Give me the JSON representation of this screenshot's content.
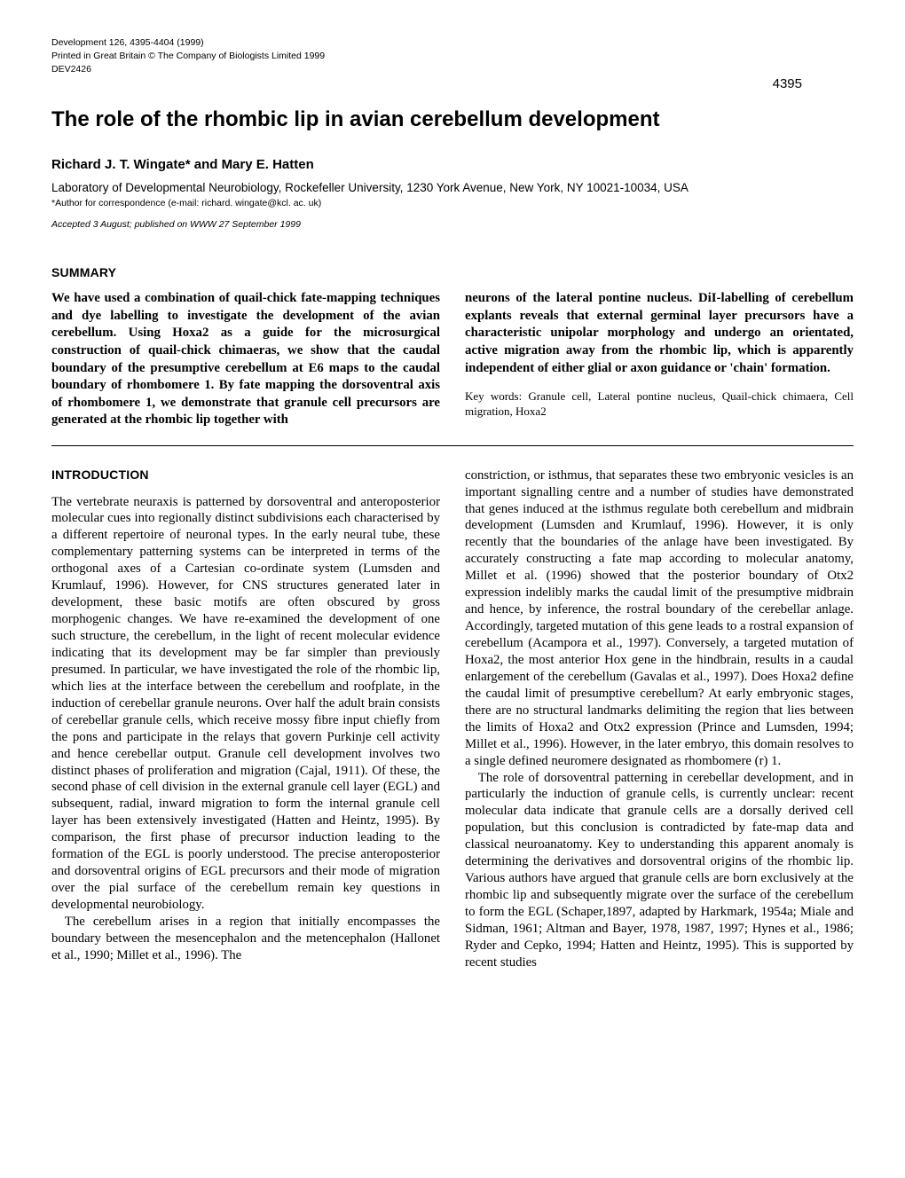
{
  "meta": {
    "journal_line1": "Development 126, 4395-4404 (1999)",
    "journal_line2": "Printed in Great Britain © The Company of Biologists Limited 1999",
    "journal_line3": "DEV2426",
    "page_number": "4395"
  },
  "title": "The role of the rhombic lip in avian cerebellum development",
  "authors": "Richard J. T. Wingate* and Mary E. Hatten",
  "affiliation": "Laboratory of Developmental Neurobiology, Rockefeller University, 1230 York Avenue, New York, NY 10021-10034, USA",
  "correspondence": "*Author for correspondence (e-mail: richard. wingate@kcl. ac. uk)",
  "accepted": "Accepted 3 August; published on WWW 27 September 1999",
  "summary": {
    "heading": "SUMMARY",
    "left": "We have used a combination of quail-chick fate-mapping techniques and dye labelling to investigate the development of the avian cerebellum. Using Hoxa2 as a guide for the microsurgical construction of quail-chick chimaeras, we show that the caudal boundary of the presumptive cerebellum at E6 maps to the caudal boundary of rhombomere 1. By fate mapping the dorsoventral axis of rhombomere 1, we demonstrate that granule cell precursors are generated at the rhombic lip together with",
    "right_bold": "neurons of the lateral pontine nucleus. DiI-labelling of cerebellum explants reveals that external germinal layer precursors have a characteristic unipolar morphology and undergo an orientated, active migration away from the rhombic lip, which is apparently independent of either glial or axon guidance or 'chain' formation.",
    "keywords": "Key words: Granule cell, Lateral pontine nucleus, Quail-chick chimaera, Cell migration, Hoxa2"
  },
  "intro": {
    "heading": "INTRODUCTION",
    "left_p1": "The vertebrate neuraxis is patterned by dorsoventral and anteroposterior molecular cues into regionally distinct subdivisions each characterised by a different repertoire of neuronal types. In the early neural tube, these complementary patterning systems can be interpreted in terms of the orthogonal axes of a Cartesian co-ordinate system (Lumsden and Krumlauf, 1996). However, for CNS structures generated later in development, these basic motifs are often obscured by gross morphogenic changes. We have re-examined the development of one such structure, the cerebellum, in the light of recent molecular evidence indicating that its development may be far simpler than previously presumed. In particular, we have investigated the role of the rhombic lip, which lies at the interface between the cerebellum and roofplate, in the induction of cerebellar granule neurons. Over half the adult brain consists of cerebellar granule cells, which receive mossy fibre input chiefly from the pons and participate in the relays that govern Purkinje cell activity and hence cerebellar output. Granule cell development involves two distinct phases of proliferation and migration (Cajal, 1911). Of these, the second phase of cell division in the external granule cell layer (EGL) and subsequent, radial, inward migration to form the internal granule cell layer has been extensively investigated (Hatten and Heintz, 1995). By comparison, the first phase of precursor induction leading to the formation of the EGL is poorly understood. The precise anteroposterior and dorsoventral origins of EGL precursors and their mode of migration over the pial surface of the cerebellum remain key questions in developmental neurobiology.",
    "left_p2": "The cerebellum arises in a region that initially encompasses the boundary between the mesencephalon and the metencephalon (Hallonet et al., 1990; Millet et al., 1996). The",
    "right_p1": "constriction, or isthmus, that separates these two embryonic vesicles is an important signalling centre and a number of studies have demonstrated that genes induced at the isthmus regulate both cerebellum and midbrain development (Lumsden and Krumlauf, 1996). However, it is only recently that the boundaries of the anlage have been investigated. By accurately constructing a fate map according to molecular anatomy, Millet et al. (1996) showed that the posterior boundary of Otx2 expression indelibly marks the caudal limit of the presumptive midbrain and hence, by inference, the rostral boundary of the cerebellar anlage. Accordingly, targeted mutation of this gene leads to a rostral expansion of cerebellum (Acampora et al., 1997). Conversely, a targeted mutation of Hoxa2, the most anterior Hox gene in the hindbrain, results in a caudal enlargement of the cerebellum (Gavalas et al., 1997). Does Hoxa2 define the caudal limit of presumptive cerebellum? At early embryonic stages, there are no structural landmarks delimiting the region that lies between the limits of Hoxa2 and Otx2 expression (Prince and Lumsden, 1994; Millet et al., 1996). However, in the later embryo, this domain resolves to a single defined neuromere designated as rhombomere (r) 1.",
    "right_p2": "The role of dorsoventral patterning in cerebellar development, and in particularly the induction of granule cells, is currently unclear: recent molecular data indicate that granule cells are a dorsally derived cell population, but this conclusion is contradicted by fate-map data and classical neuroanatomy. Key to understanding this apparent anomaly is determining the derivatives and dorsoventral origins of the rhombic lip. Various authors have argued that granule cells are born exclusively at the rhombic lip and subsequently migrate over the surface of the cerebellum to form the EGL (Schaper,1897, adapted by Harkmark, 1954a; Miale and Sidman, 1961; Altman and Bayer, 1978, 1987, 1997; Hynes et al., 1986; Ryder and Cepko, 1994; Hatten and Heintz, 1995). This is supported by recent studies"
  }
}
